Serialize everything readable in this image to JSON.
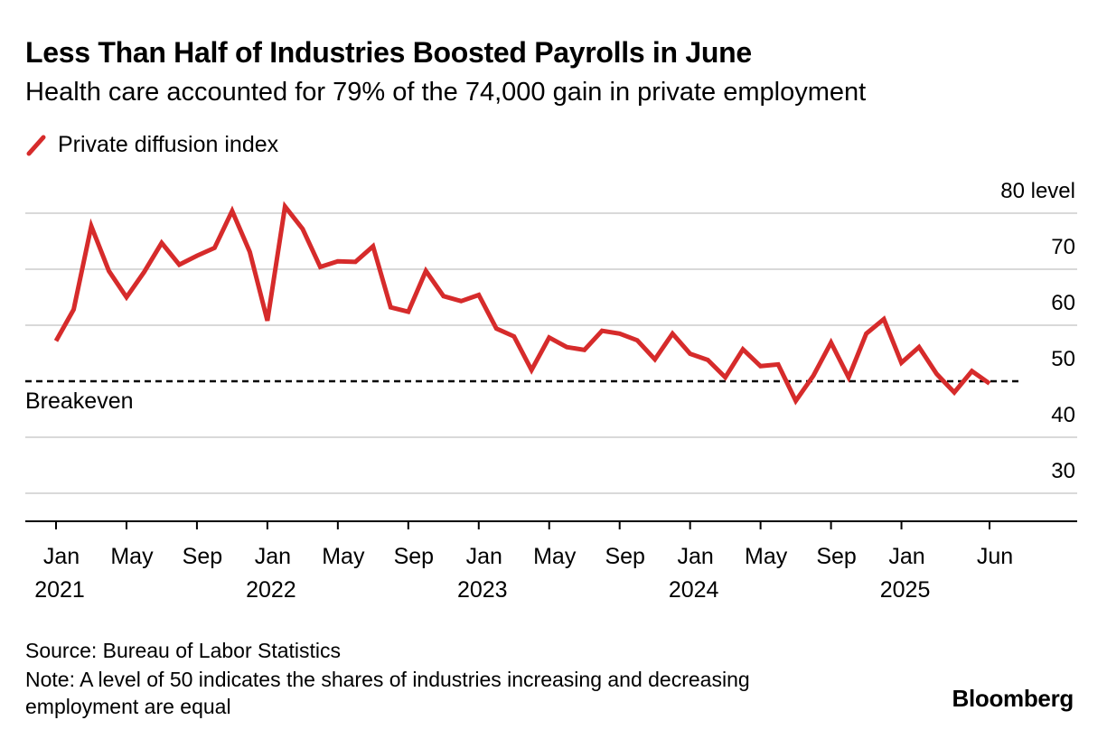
{
  "title": "Less Than Half of Industries Boosted Payrolls in June",
  "subtitle": "Health care accounted for 79% of the 74,000 gain in private employment",
  "source": "Source: Bureau of Labor Statistics",
  "note": "Note: A level of 50 indicates the shares of industries increasing and decreasing employment are equal",
  "brand": "Bloomberg",
  "colors": {
    "series": "#d62b2b",
    "grid": "#d9d9d9",
    "axis": "#000000",
    "reference": "#000000"
  },
  "chart_data": {
    "type": "line",
    "title": "Less Than Half of Industries Boosted Payrolls in June",
    "subtitle": "Health care accounted for 79% of the 74,000 gain in private employment",
    "ylabel_unit": "level",
    "ylim": [
      25,
      80
    ],
    "yticks": [
      30,
      40,
      50,
      60,
      70,
      80
    ],
    "grid": true,
    "legend_placement": "top-left",
    "x_start": "2021-01",
    "x_ticks": [
      {
        "label": "Jan",
        "sub": "2021",
        "date": "2021-01"
      },
      {
        "label": "May",
        "sub": "",
        "date": "2021-05"
      },
      {
        "label": "Sep",
        "sub": "",
        "date": "2021-09"
      },
      {
        "label": "Jan",
        "sub": "2022",
        "date": "2022-01"
      },
      {
        "label": "May",
        "sub": "",
        "date": "2022-05"
      },
      {
        "label": "Sep",
        "sub": "",
        "date": "2022-09"
      },
      {
        "label": "Jan",
        "sub": "2023",
        "date": "2023-01"
      },
      {
        "label": "May",
        "sub": "",
        "date": "2023-05"
      },
      {
        "label": "Sep",
        "sub": "",
        "date": "2023-09"
      },
      {
        "label": "Jan",
        "sub": "2024",
        "date": "2024-01"
      },
      {
        "label": "May",
        "sub": "",
        "date": "2024-05"
      },
      {
        "label": "Sep",
        "sub": "",
        "date": "2024-09"
      },
      {
        "label": "Jan",
        "sub": "2025",
        "date": "2025-01"
      },
      {
        "label": "Jun",
        "sub": "",
        "date": "2025-06"
      }
    ],
    "reference_line": {
      "value": 50,
      "label": "Breakeven"
    },
    "series": [
      {
        "name": "Private diffusion index",
        "x": [
          "2021-01",
          "2021-02",
          "2021-03",
          "2021-04",
          "2021-05",
          "2021-06",
          "2021-07",
          "2021-08",
          "2021-09",
          "2021-10",
          "2021-11",
          "2021-12",
          "2022-01",
          "2022-02",
          "2022-03",
          "2022-04",
          "2022-05",
          "2022-06",
          "2022-07",
          "2022-08",
          "2022-09",
          "2022-10",
          "2022-11",
          "2022-12",
          "2023-01",
          "2023-02",
          "2023-03",
          "2023-04",
          "2023-05",
          "2023-06",
          "2023-07",
          "2023-08",
          "2023-09",
          "2023-10",
          "2023-11",
          "2023-12",
          "2024-01",
          "2024-02",
          "2024-03",
          "2024-04",
          "2024-05",
          "2024-06",
          "2024-07",
          "2024-08",
          "2024-09",
          "2024-10",
          "2024-11",
          "2024-12",
          "2025-01",
          "2025-02",
          "2025-03",
          "2025-04",
          "2025-05",
          "2025-06"
        ],
        "values": [
          57.2,
          62.8,
          77.7,
          69.7,
          65.0,
          69.5,
          74.7,
          70.8,
          72.4,
          73.8,
          80.4,
          73.1,
          60.8,
          81.2,
          77.2,
          70.4,
          71.4,
          71.3,
          74.1,
          63.2,
          62.4,
          69.7,
          65.2,
          64.3,
          65.4,
          59.4,
          58.0,
          52.0,
          57.8,
          56.1,
          55.6,
          59.0,
          58.5,
          57.3,
          53.9,
          58.5,
          54.9,
          53.8,
          50.7,
          55.7,
          52.7,
          53.0,
          46.5,
          51.0,
          56.9,
          50.7,
          58.5,
          61.1,
          53.3,
          56.1,
          51.3,
          48.0,
          51.8,
          49.6
        ]
      }
    ]
  }
}
